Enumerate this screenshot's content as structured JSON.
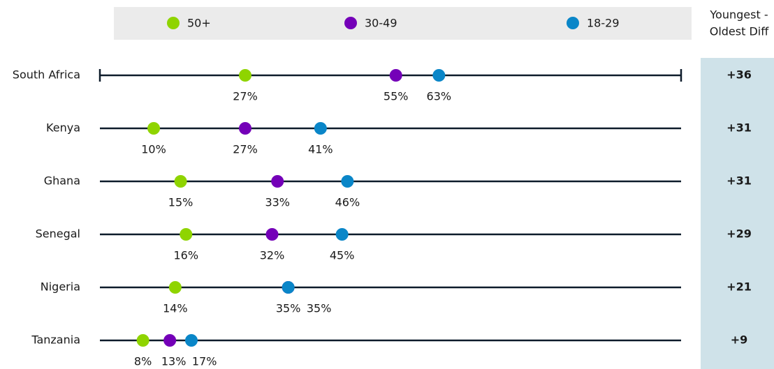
{
  "chart_data": {
    "type": "dot",
    "categories": [
      "South Africa",
      "Kenya",
      "Ghana",
      "Senegal",
      "Nigeria",
      "Tanzania"
    ],
    "series": [
      {
        "name": "50+",
        "color": "#8fd400",
        "values": [
          27,
          10,
          15,
          16,
          14,
          8
        ],
        "value_labels": [
          "27%",
          "10%",
          "15%",
          "16%",
          "14%",
          "8%"
        ]
      },
      {
        "name": "30-49",
        "color": "#7400b8",
        "values": [
          55,
          27,
          33,
          32,
          35,
          13
        ],
        "value_labels": [
          "55%",
          "27%",
          "33%",
          "32%",
          "35%",
          "13%"
        ]
      },
      {
        "name": "18-29",
        "color": "#0a86c8",
        "values": [
          63,
          41,
          46,
          45,
          35,
          17
        ],
        "value_labels": [
          "63%",
          "41%",
          "46%",
          "45%",
          "35%",
          "17%"
        ]
      }
    ],
    "xlim": [
      0,
      108
    ],
    "diff_title": [
      "Youngest -",
      "Oldest Diff"
    ],
    "diff": {
      "values": [
        36,
        31,
        31,
        29,
        21,
        9
      ],
      "value_labels": [
        "+36",
        "+31",
        "+31",
        "+29",
        "+21",
        "+9"
      ]
    }
  }
}
